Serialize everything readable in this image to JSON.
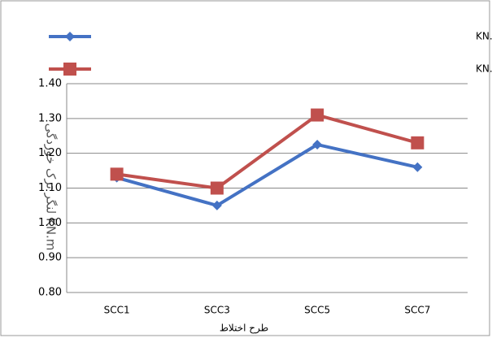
{
  "chart_data": {
    "type": "line",
    "x_label": "طرح اختلاط",
    "y_label": "لنگر ترک خوردگی KN.m",
    "categories": [
      "SCC1",
      "SCC3",
      "SCC5",
      "SCC7"
    ],
    "series": [
      {
        "name": "میزان لنگر ترک خوردگی در آبا و مبحث نهم مقررات ملی ساختمان KN.m",
        "color": "#4472c4",
        "marker": "diamond",
        "values": [
          1.13,
          1.05,
          1.225,
          1.16
        ]
      },
      {
        "name": "میزان لنگر ترک خوردگی آزمایشگاهی KN.m",
        "color": "#c0504d",
        "marker": "square",
        "values": [
          1.14,
          1.1,
          1.31,
          1.23
        ]
      }
    ],
    "ylim": [
      0.8,
      1.4
    ],
    "yticks": [
      {
        "value": 0.8,
        "label": "0.80"
      },
      {
        "value": 0.9,
        "label": "0.90"
      },
      {
        "value": 1.0,
        "label": "1.00"
      },
      {
        "value": 1.1,
        "label": "1.10"
      },
      {
        "value": 1.2,
        "label": "1.20"
      },
      {
        "value": 1.3,
        "label": "1.30"
      },
      {
        "value": 1.4,
        "label": "1.40"
      }
    ],
    "grid": true,
    "legend": "top"
  }
}
